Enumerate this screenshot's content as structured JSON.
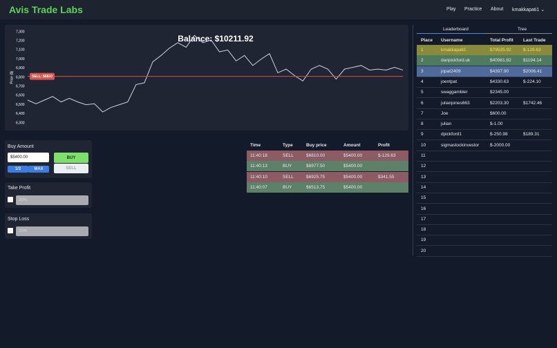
{
  "header": {
    "title": "Avis Trade Labs",
    "nav": [
      "Play",
      "Practice",
      "About",
      "kmakkapati1"
    ]
  },
  "chart_data": {
    "type": "line",
    "title": "Balance: $10211.92",
    "y_label": "Price ($)",
    "color": "#d0d4dc",
    "values": [
      6550,
      6510,
      6550,
      6590,
      6530,
      6570,
      6530,
      6500,
      6510,
      6420,
      6470,
      6500,
      6530,
      6720,
      6740,
      6970,
      7040,
      7120,
      7180,
      7130,
      7260,
      7180,
      7210,
      7080,
      7100,
      6980,
      7040,
      6930,
      7000,
      7060,
      6850,
      6890,
      6820,
      6760,
      6890,
      6930,
      6890,
      6780,
      6890,
      6910,
      6930,
      6880,
      6890,
      6880,
      6910,
      6880
    ],
    "ylim": [
      6300,
      7300
    ],
    "yticks": [
      {
        "value": 6300,
        "label": "6,300"
      },
      {
        "value": 6400,
        "label": "6,400"
      },
      {
        "value": 6500,
        "label": "6,500"
      },
      {
        "value": 6600,
        "label": "6,600"
      },
      {
        "value": 6700,
        "label": "6,700"
      },
      {
        "value": 6800,
        "label": "6,800"
      },
      {
        "value": 6900,
        "label": "6,900"
      },
      {
        "value": 7000,
        "label": "7,000"
      },
      {
        "value": 7100,
        "label": "7,100"
      },
      {
        "value": 7200,
        "label": "7,200"
      },
      {
        "value": 7300,
        "label": "7,300"
      }
    ],
    "sell_line": {
      "value": 6810,
      "label": "SELL: $6810",
      "color": "#d9534f"
    }
  },
  "trade_panel": {
    "buy_amount": {
      "label": "Buy Amount",
      "input": "$5400.00",
      "half": "1/2",
      "max": "MAX",
      "buy": "BUY",
      "sell": "SELL"
    },
    "take_profit": {
      "label": "Take Profit",
      "placeholder": "20%"
    },
    "stop_loss": {
      "label": "Stop Loss",
      "placeholder": "20%"
    }
  },
  "trades": {
    "columns": [
      "Time",
      "Type",
      "Buy price",
      "Amount",
      "Profit"
    ],
    "rows": [
      [
        "11:40:18",
        "SELL",
        "$6810.00",
        "$5400.00",
        "$-129.63"
      ],
      [
        "11:40:13",
        "BUY",
        "$6977.50",
        "$5400.00"
      ],
      [
        "11:40:10",
        "SELL",
        "$6925.75",
        "$5400.00",
        "$341.55"
      ],
      [
        "11:40:07",
        "BUY",
        "$6513.75",
        "$5400.00"
      ]
    ]
  },
  "leaderboard": {
    "tabs": [
      "Leaderboard",
      "Tree"
    ],
    "columns": [
      "Place",
      "Username",
      "Total Profit",
      "Last Trade"
    ],
    "rows": [
      [
        "1",
        "kmakkapati1",
        "$79535.92",
        "$-129.63"
      ],
      [
        "2",
        "danpickford.uk",
        "$40981.82",
        "$1194.14"
      ],
      [
        "3",
        "jopat2409",
        "$4397.90",
        "$2006.41"
      ],
      [
        "4",
        "joentpat",
        "$4330.63",
        "$-224.10"
      ],
      [
        "5",
        "swaggambler",
        "$2345.00"
      ],
      [
        "6",
        "julianjones663",
        "$2203.30",
        "$1742.46"
      ],
      [
        "7",
        "Joe",
        "$600.00"
      ],
      [
        "8",
        "julian",
        "$-1.00"
      ],
      [
        "9",
        "dpickford1",
        "$-250.98",
        "$189.31"
      ],
      [
        "10",
        "sigmastockinvestor",
        "$-2000.00"
      ],
      [
        "11"
      ],
      [
        "12"
      ],
      [
        "13"
      ],
      [
        "14"
      ],
      [
        "15"
      ],
      [
        "16"
      ],
      [
        "17"
      ],
      [
        "18"
      ],
      [
        "19"
      ],
      [
        "20"
      ]
    ]
  }
}
